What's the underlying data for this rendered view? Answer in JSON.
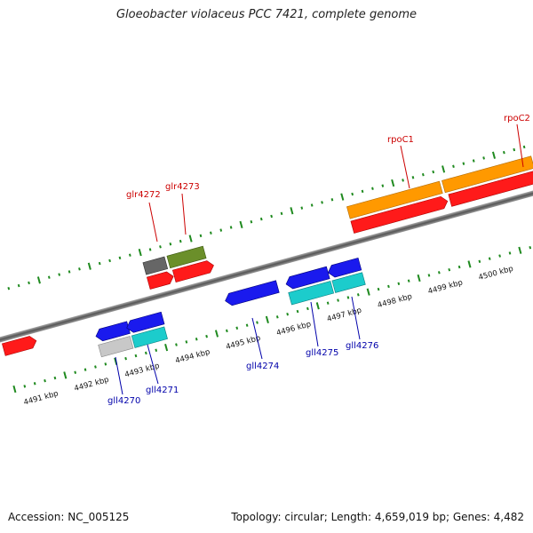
{
  "title": "Gloeobacter violaceus PCC 7421, complete genome",
  "accession": "Accession: NC_005125",
  "topology": "Topology: circular; Length: 4,659,019 bp; Genes: 4,482",
  "colors": {
    "backbone": "#8c8c8c",
    "tick": "#1f8a1f",
    "label_forward": "#cc0000",
    "label_reverse": "#0000aa",
    "red": "#ff1a1a",
    "blue": "#1a1aee",
    "cyan": "#1ccccc",
    "orange": "#ff9900",
    "olive": "#6b8f2a",
    "gray": "#666666",
    "lightgray": "#c8c8c8"
  },
  "kbp_labels": [
    "4491 kbp",
    "4492 kbp",
    "4493 kbp",
    "4494 kbp",
    "4495 kbp",
    "4496 kbp",
    "4497 kbp",
    "4498 kbp",
    "4499 kbp",
    "4500 kbp"
  ],
  "gene_labels": {
    "forward": [
      "glr4272",
      "glr4273",
      "rpoC1",
      "rpoC2"
    ],
    "reverse": [
      "gll4270",
      "gll4271",
      "gll4274",
      "gll4275",
      "gll4276"
    ]
  }
}
